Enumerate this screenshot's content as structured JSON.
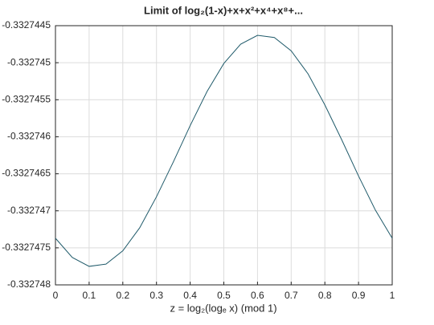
{
  "chart_data": {
    "type": "line",
    "title": "Limit of log₂(1-x)+x+x²+x⁴+x⁸+...",
    "x_label": "z = log₂(logₑ x) (mod 1)",
    "x": [
      0,
      0.05,
      0.1,
      0.15,
      0.2,
      0.25,
      0.3,
      0.35,
      0.4,
      0.45,
      0.5,
      0.55,
      0.6,
      0.65,
      0.7,
      0.75,
      0.8,
      0.85,
      0.9,
      0.95,
      1
    ],
    "series": [
      {
        "color": "#1f5a6a",
        "values": [
          -0.33274737,
          -0.33274763,
          -0.33274775,
          -0.33274772,
          -0.33274754,
          -0.33274723,
          -0.33274681,
          -0.33274634,
          -0.33274585,
          -0.33274539,
          -0.33274501,
          -0.33274475,
          -0.33274463,
          -0.33274466,
          -0.33274484,
          -0.33274515,
          -0.33274557,
          -0.33274604,
          -0.33274653,
          -0.33274699,
          -0.33274737
        ]
      }
    ],
    "xlim": [
      0,
      1
    ],
    "xticks": [
      0,
      0.1,
      0.2,
      0.3,
      0.4,
      0.5,
      0.6,
      0.7,
      0.8,
      0.9,
      1
    ],
    "ylim": [
      -0.332748,
      -0.3327445
    ],
    "yticks": [
      -0.3327445,
      -0.332745,
      -0.3327455,
      -0.332746,
      -0.3327465,
      -0.332747,
      -0.3327475,
      -0.332748
    ],
    "grid": true
  }
}
